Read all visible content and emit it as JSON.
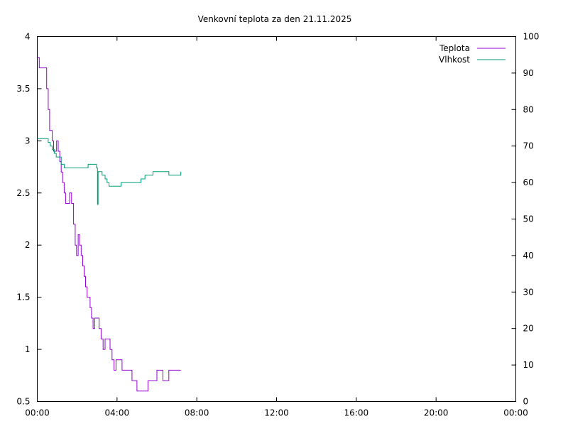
{
  "chart_data": {
    "type": "line",
    "title": "Venkovní teplota za den 21.11.2025",
    "xlabel": "",
    "ylabel": "",
    "y2label": "",
    "xlim": [
      0,
      24
    ],
    "ylim": [
      0.5,
      4
    ],
    "y2lim": [
      0,
      100
    ],
    "x_ticks": [
      "00:00",
      "04:00",
      "08:00",
      "12:00",
      "16:00",
      "20:00",
      "00:00"
    ],
    "y_ticks": [
      "0.5",
      "1",
      "1.5",
      "2",
      "2.5",
      "3",
      "3.5",
      "4"
    ],
    "y2_ticks": [
      "0",
      "10",
      "20",
      "30",
      "40",
      "50",
      "60",
      "70",
      "80",
      "90",
      "100"
    ],
    "grid": false,
    "legend_position": "top-right",
    "colors": {
      "teplota": "#9400d3",
      "vlhkost": "#009e73"
    },
    "series": [
      {
        "name": "Teplota",
        "axis": "left",
        "x": [
          0.0,
          0.1,
          0.17,
          0.3,
          0.47,
          0.55,
          0.62,
          0.75,
          0.82,
          0.9,
          0.97,
          1.05,
          1.13,
          1.2,
          1.27,
          1.35,
          1.42,
          1.5,
          1.62,
          1.72,
          1.82,
          1.9,
          1.97,
          2.05,
          2.12,
          2.2,
          2.28,
          2.35,
          2.42,
          2.5,
          2.57,
          2.65,
          2.72,
          2.8,
          2.88,
          2.95,
          3.02,
          3.1,
          3.2,
          3.3,
          3.4,
          3.47,
          3.55,
          3.65,
          3.75,
          3.85,
          3.95,
          4.05,
          4.15,
          4.25,
          4.35,
          4.45,
          4.55,
          4.65,
          4.75,
          4.85,
          5.0,
          5.2,
          5.4,
          5.55,
          5.65,
          5.75,
          5.85,
          6.0,
          6.15,
          6.3,
          6.45,
          6.6,
          6.75,
          6.9,
          7.05,
          7.2
        ],
        "y": [
          3.8,
          3.7,
          3.7,
          3.7,
          3.5,
          3.3,
          3.1,
          3.0,
          2.9,
          2.9,
          3.0,
          2.9,
          2.8,
          2.7,
          2.6,
          2.5,
          2.4,
          2.4,
          2.5,
          2.4,
          2.2,
          2.0,
          1.9,
          2.1,
          2.0,
          1.9,
          1.8,
          1.7,
          1.6,
          1.5,
          1.5,
          1.4,
          1.3,
          1.2,
          1.3,
          1.3,
          1.3,
          1.2,
          1.1,
          1.0,
          1.1,
          1.1,
          1.1,
          1.0,
          0.9,
          0.8,
          0.9,
          0.9,
          0.9,
          0.8,
          0.8,
          0.8,
          0.8,
          0.8,
          0.7,
          0.7,
          0.6,
          0.6,
          0.6,
          0.7,
          0.7,
          0.7,
          0.7,
          0.8,
          0.8,
          0.7,
          0.7,
          0.8,
          0.8,
          0.8,
          0.8,
          0.8
        ]
      },
      {
        "name": "Vlhkost",
        "axis": "right",
        "x": [
          0.0,
          0.15,
          0.3,
          0.45,
          0.55,
          0.65,
          0.75,
          0.85,
          0.95,
          1.05,
          1.2,
          1.35,
          1.5,
          1.65,
          1.8,
          1.95,
          2.1,
          2.25,
          2.4,
          2.55,
          2.7,
          2.8,
          2.9,
          2.97,
          3.02,
          3.05,
          3.1,
          3.25,
          3.4,
          3.5,
          3.6,
          3.7,
          3.85,
          4.0,
          4.2,
          4.4,
          4.6,
          4.8,
          5.0,
          5.2,
          5.4,
          5.6,
          5.8,
          6.0,
          6.2,
          6.4,
          6.6,
          6.8,
          7.0,
          7.2
        ],
        "y": [
          72,
          72,
          72,
          72,
          71,
          70,
          69,
          68,
          67,
          67,
          65,
          64,
          64,
          64,
          64,
          64,
          64,
          64,
          64,
          65,
          65,
          65,
          65,
          64,
          54,
          63,
          63,
          62,
          61,
          60,
          59,
          59,
          59,
          59,
          60,
          60,
          60,
          60,
          60,
          61,
          62,
          62,
          63,
          63,
          63,
          63,
          62,
          62,
          62,
          63
        ]
      }
    ]
  }
}
